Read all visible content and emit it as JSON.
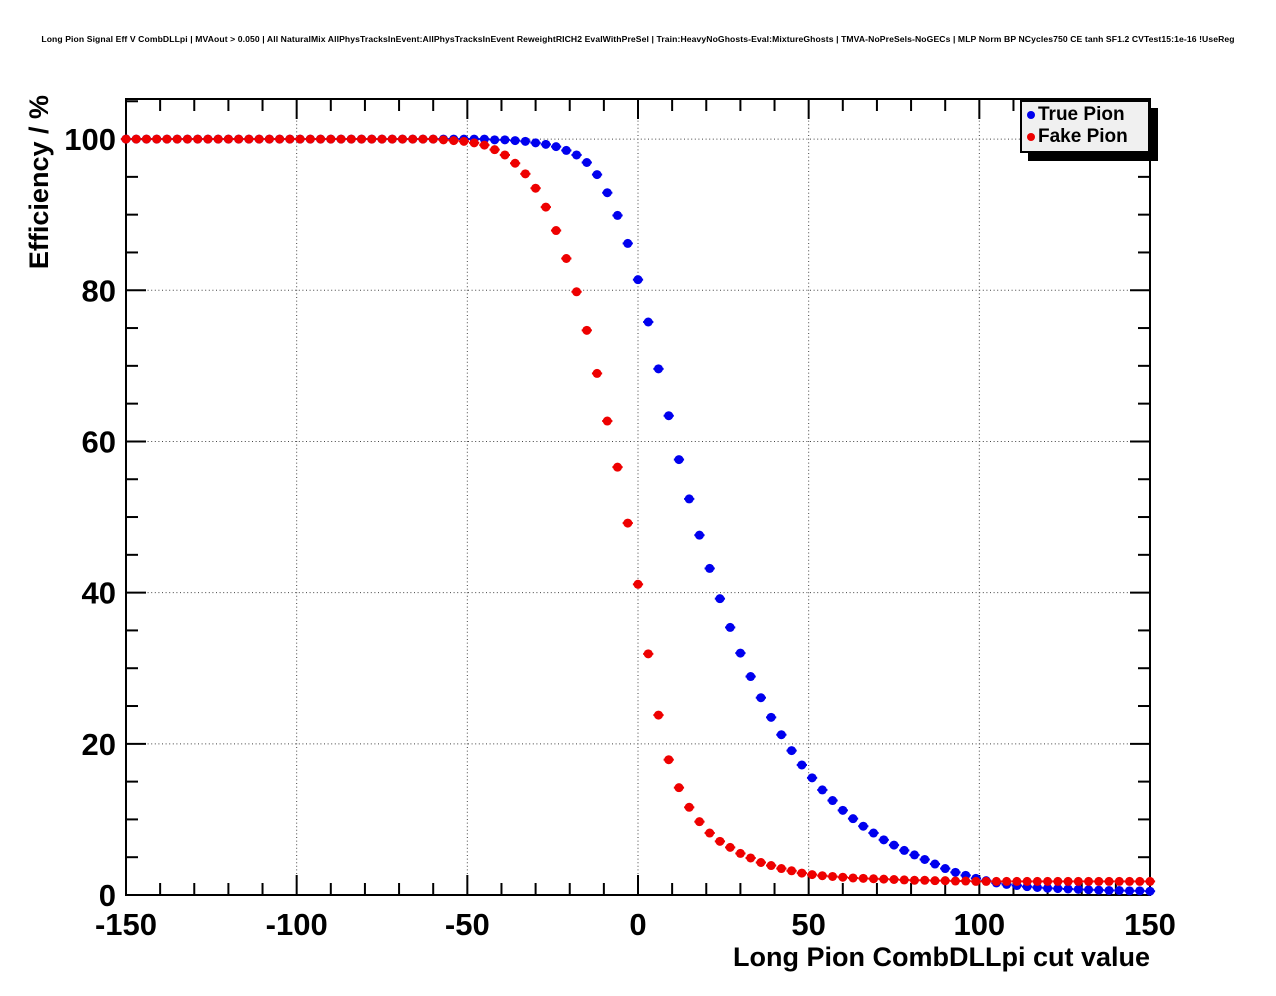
{
  "title": "Long Pion Signal Eff V CombDLLpi | MVAout > 0.050 | All NaturalMix AllPhysTracksInEvent:AllPhysTracksInEvent ReweightRICH2 EvalWithPreSel | Train:HeavyNoGhosts-Eval:MixtureGhosts | TMVA-NoPreSels-NoGECs | MLP Norm BP NCycles750 CE tanh SF1.2 CVTest15:1e-16 !UseReg",
  "colors": {
    "true_pion": "#0000ee",
    "fake_pion": "#ee0000",
    "axis": "#000000",
    "grid": "#444444",
    "legend_bg": "#f0f0f0",
    "legend_shadow": "#000000",
    "background": "#ffffff"
  },
  "legend": {
    "entries": [
      {
        "label": "True Pion",
        "color": "#0000ee"
      },
      {
        "label": "Fake Pion",
        "color": "#ee0000"
      }
    ]
  },
  "chart_data": {
    "type": "scatter",
    "title": "Long Pion Signal Eff V CombDLLpi | MVAout > 0.050 | All NaturalMix AllPhysTracksInEvent:AllPhysTracksInEvent ReweightRICH2 EvalWithPreSel | Train:HeavyNoGhosts-Eval:MixtureGhosts | TMVA-NoPreSels-NoGECs | MLP Norm BP NCycles750 CE tanh SF1.2 CVTest15:1e-16 !UseReg",
    "xlabel": "Long Pion CombDLLpi cut value",
    "ylabel": "Efficiency / %",
    "xlim": [
      -150,
      150
    ],
    "ylim": [
      0,
      105.3
    ],
    "x_ticks": [
      -150,
      -100,
      -50,
      0,
      50,
      100,
      150
    ],
    "x_tick_labels": [
      "-150",
      "-100",
      "-50",
      "0",
      "50",
      "100",
      "150"
    ],
    "y_ticks": [
      0,
      20,
      40,
      60,
      80,
      100
    ],
    "y_tick_labels": [
      "0",
      "20",
      "40",
      "60",
      "80",
      "100"
    ],
    "x_minor_step": 10,
    "y_minor_step": 5,
    "grid": "dotted",
    "legend_position": "top-right",
    "marker": "filled-circle",
    "x_error_halfwidth": 1.5,
    "x": [
      -150,
      -147,
      -144,
      -141,
      -138,
      -135,
      -132,
      -129,
      -126,
      -123,
      -120,
      -117,
      -114,
      -111,
      -108,
      -105,
      -102,
      -99,
      -96,
      -93,
      -90,
      -87,
      -84,
      -81,
      -78,
      -75,
      -72,
      -69,
      -66,
      -63,
      -60,
      -57,
      -54,
      -51,
      -48,
      -45,
      -42,
      -39,
      -36,
      -33,
      -30,
      -27,
      -24,
      -21,
      -18,
      -15,
      -12,
      -9,
      -6,
      -3,
      0,
      3,
      6,
      9,
      12,
      15,
      18,
      21,
      24,
      27,
      30,
      33,
      36,
      39,
      42,
      45,
      48,
      51,
      54,
      57,
      60,
      63,
      66,
      69,
      72,
      75,
      78,
      81,
      84,
      87,
      90,
      93,
      96,
      99,
      102,
      105,
      108,
      111,
      114,
      117,
      120,
      123,
      126,
      129,
      132,
      135,
      138,
      141,
      144,
      147,
      150
    ],
    "series": [
      {
        "name": "True Pion",
        "color": "#0000ee",
        "values": [
          100,
          100,
          100,
          100,
          100,
          100,
          100,
          100,
          100,
          100,
          100,
          100,
          100,
          100,
          100,
          100,
          100,
          100,
          100,
          100,
          100,
          100,
          100,
          100,
          100,
          100,
          100,
          100,
          100,
          100,
          100,
          100,
          100,
          100,
          100,
          100,
          99.9,
          99.9,
          99.8,
          99.7,
          99.5,
          99.3,
          99.0,
          98.5,
          97.9,
          96.9,
          95.3,
          92.9,
          89.9,
          86.2,
          81.4,
          75.8,
          69.6,
          63.4,
          57.6,
          52.4,
          47.6,
          43.2,
          39.2,
          35.4,
          32.0,
          28.9,
          26.1,
          23.5,
          21.2,
          19.1,
          17.2,
          15.5,
          13.9,
          12.5,
          11.2,
          10.1,
          9.1,
          8.2,
          7.3,
          6.6,
          5.9,
          5.3,
          4.7,
          4.1,
          3.5,
          3.0,
          2.6,
          2.2,
          1.9,
          1.6,
          1.4,
          1.25,
          1.1,
          1.0,
          0.9,
          0.85,
          0.8,
          0.75,
          0.7,
          0.65,
          0.6,
          0.6,
          0.55,
          0.55,
          0.5
        ]
      },
      {
        "name": "Fake Pion",
        "color": "#ee0000",
        "values": [
          100,
          100,
          100,
          100,
          100,
          100,
          100,
          100,
          100,
          100,
          100,
          100,
          100,
          100,
          100,
          100,
          100,
          100,
          100,
          100,
          100,
          100,
          100,
          100,
          100,
          100,
          100,
          100,
          100,
          100,
          100,
          99.9,
          99.8,
          99.7,
          99.5,
          99.2,
          98.6,
          97.9,
          96.8,
          95.4,
          93.5,
          91.0,
          87.9,
          84.2,
          79.8,
          74.7,
          69.0,
          62.7,
          56.6,
          49.2,
          41.1,
          31.9,
          23.8,
          17.9,
          14.2,
          11.6,
          9.7,
          8.2,
          7.1,
          6.3,
          5.5,
          4.9,
          4.3,
          3.9,
          3.5,
          3.2,
          2.9,
          2.7,
          2.55,
          2.45,
          2.35,
          2.25,
          2.2,
          2.15,
          2.1,
          2.05,
          2.0,
          1.95,
          1.95,
          1.9,
          1.9,
          1.85,
          1.85,
          1.8,
          1.8,
          1.8,
          1.8,
          1.8,
          1.8,
          1.8,
          1.8,
          1.8,
          1.8,
          1.8,
          1.8,
          1.8,
          1.8,
          1.8,
          1.8,
          1.8,
          1.8
        ]
      }
    ]
  }
}
